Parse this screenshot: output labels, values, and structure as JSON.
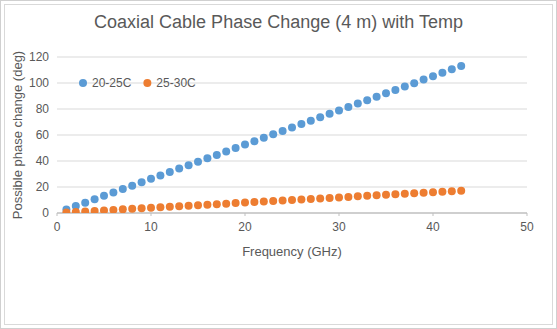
{
  "chart_data": {
    "type": "scatter",
    "title": "Coaxial Cable Phase Change (4 m) with Temp",
    "x_label": "Frequency (GHz)",
    "y_label": "Possible phase change (deg)",
    "x": [
      1,
      2,
      3,
      4,
      5,
      6,
      7,
      8,
      9,
      10,
      11,
      12,
      13,
      14,
      15,
      16,
      17,
      18,
      19,
      20,
      21,
      22,
      23,
      24,
      25,
      26,
      27,
      28,
      29,
      30,
      31,
      32,
      33,
      34,
      35,
      36,
      37,
      38,
      39,
      40,
      41,
      42,
      43
    ],
    "series": [
      {
        "name": "20-25C",
        "color": "#5b9bd5",
        "marker": "circle",
        "values": [
          2.6,
          5.3,
          7.9,
          10.5,
          13.2,
          15.8,
          18.4,
          21.0,
          23.7,
          26.3,
          28.9,
          31.6,
          34.2,
          36.8,
          39.5,
          42.1,
          44.7,
          47.3,
          50.0,
          52.6,
          55.2,
          57.9,
          60.5,
          63.1,
          65.8,
          68.4,
          71.0,
          73.6,
          76.3,
          78.9,
          81.5,
          84.2,
          86.8,
          89.4,
          92.1,
          94.7,
          97.3,
          99.9,
          102.6,
          105.2,
          107.8,
          110.5,
          113.1
        ]
      },
      {
        "name": "25-30C",
        "color": "#ed7d31",
        "marker": "circle",
        "values": [
          0.4,
          0.8,
          1.2,
          1.6,
          2.0,
          2.4,
          2.8,
          3.2,
          3.6,
          4.0,
          4.4,
          4.8,
          5.2,
          5.6,
          6.0,
          6.4,
          6.8,
          7.2,
          7.6,
          8.0,
          8.4,
          8.8,
          9.2,
          9.6,
          10.0,
          10.4,
          10.8,
          11.2,
          11.6,
          12.0,
          12.4,
          12.8,
          13.2,
          13.6,
          14.0,
          14.4,
          14.8,
          15.2,
          15.6,
          16.0,
          16.4,
          16.8,
          17.2
        ]
      }
    ],
    "xlim": [
      0,
      50
    ],
    "xticks": [
      0,
      10,
      20,
      30,
      40,
      50
    ],
    "ylim": [
      0,
      120
    ],
    "yticks": [
      0,
      20,
      40,
      60,
      80,
      100,
      120
    ],
    "grid": true,
    "legend": "top-left"
  }
}
